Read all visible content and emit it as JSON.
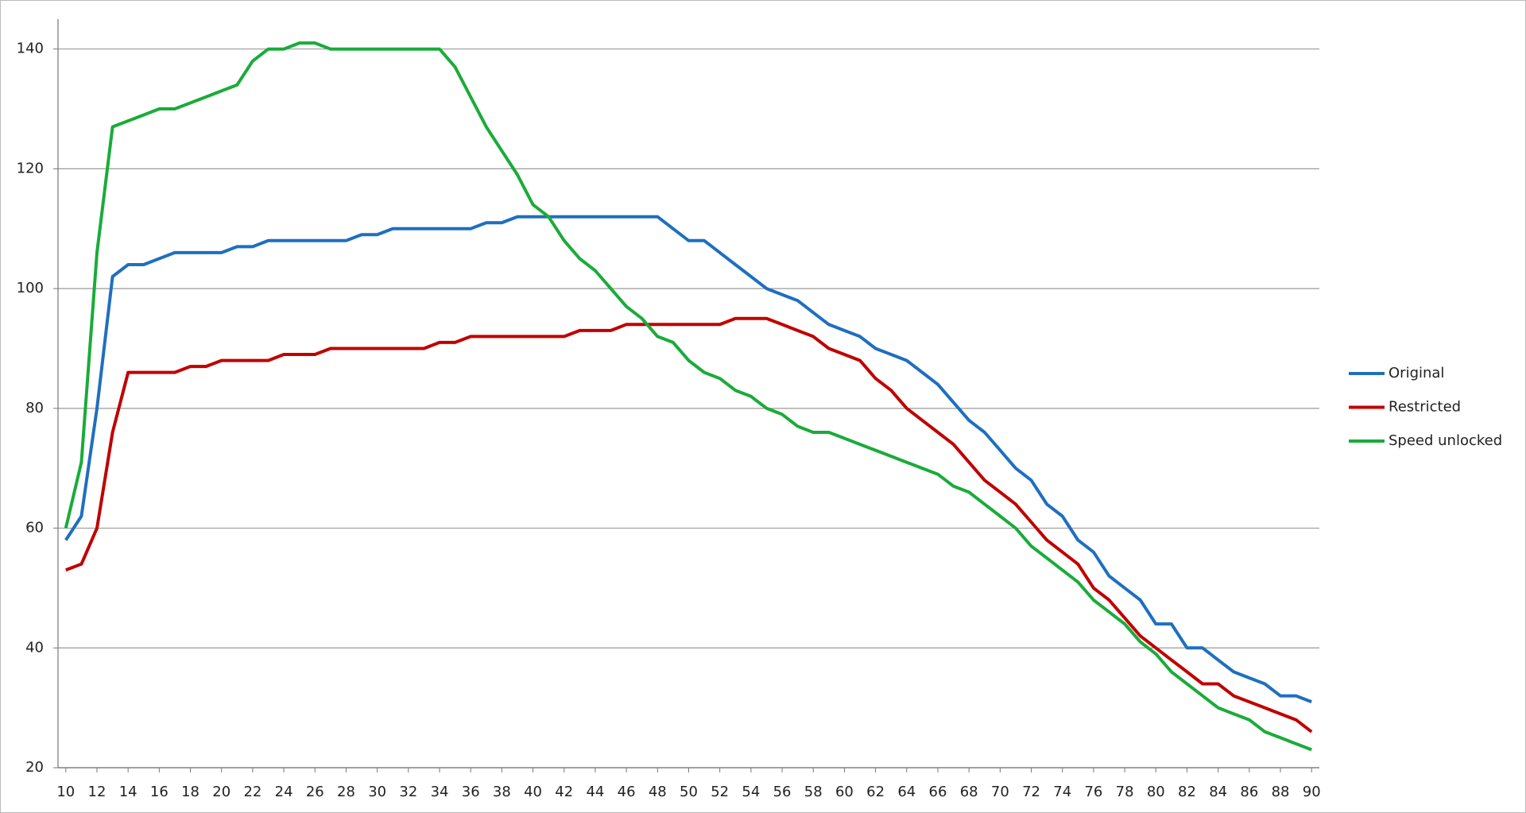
{
  "chart_data": {
    "type": "line",
    "x": [
      10,
      11,
      12,
      13,
      14,
      15,
      16,
      17,
      18,
      19,
      20,
      21,
      22,
      23,
      24,
      25,
      26,
      27,
      28,
      29,
      30,
      31,
      32,
      33,
      34,
      35,
      36,
      37,
      38,
      39,
      40,
      41,
      42,
      43,
      44,
      45,
      46,
      47,
      48,
      49,
      50,
      51,
      52,
      53,
      54,
      55,
      56,
      57,
      58,
      59,
      60,
      61,
      62,
      63,
      64,
      65,
      66,
      67,
      68,
      69,
      70,
      71,
      72,
      73,
      74,
      75,
      76,
      77,
      78,
      79,
      80,
      81,
      82,
      83,
      84,
      85,
      86,
      87,
      88,
      89,
      90
    ],
    "series": [
      {
        "name": "Original",
        "color": "#1f6fbf",
        "values": [
          58,
          62,
          80,
          102,
          104,
          104,
          105,
          106,
          106,
          106,
          106,
          107,
          107,
          108,
          108,
          108,
          108,
          108,
          108,
          109,
          109,
          110,
          110,
          110,
          110,
          110,
          110,
          111,
          111,
          112,
          112,
          112,
          112,
          112,
          112,
          112,
          112,
          112,
          112,
          110,
          108,
          108,
          106,
          104,
          102,
          100,
          99,
          98,
          96,
          94,
          93,
          92,
          90,
          89,
          88,
          86,
          84,
          81,
          78,
          76,
          73,
          70,
          68,
          64,
          62,
          58,
          56,
          52,
          50,
          48,
          44,
          44,
          40,
          40,
          38,
          36,
          35,
          34,
          32,
          32,
          31
        ]
      },
      {
        "name": "Restricted",
        "color": "#c00000",
        "values": [
          53,
          54,
          60,
          76,
          86,
          86,
          86,
          86,
          87,
          87,
          88,
          88,
          88,
          88,
          89,
          89,
          89,
          90,
          90,
          90,
          90,
          90,
          90,
          90,
          91,
          91,
          92,
          92,
          92,
          92,
          92,
          92,
          92,
          93,
          93,
          93,
          94,
          94,
          94,
          94,
          94,
          94,
          94,
          95,
          95,
          95,
          94,
          93,
          92,
          90,
          89,
          88,
          85,
          83,
          80,
          78,
          76,
          74,
          71,
          68,
          66,
          64,
          61,
          58,
          56,
          54,
          50,
          48,
          45,
          42,
          40,
          38,
          36,
          34,
          34,
          32,
          31,
          30,
          29,
          28,
          26
        ]
      },
      {
        "name": "Speed unlocked",
        "color": "#1aab3a",
        "values": [
          60,
          71,
          106,
          127,
          128,
          129,
          130,
          130,
          131,
          132,
          133,
          134,
          138,
          140,
          140,
          141,
          141,
          140,
          140,
          140,
          140,
          140,
          140,
          140,
          140,
          137,
          132,
          127,
          123,
          119,
          114,
          112,
          108,
          105,
          103,
          100,
          97,
          95,
          92,
          91,
          88,
          86,
          85,
          83,
          82,
          80,
          79,
          77,
          76,
          76,
          75,
          74,
          73,
          72,
          71,
          70,
          69,
          67,
          66,
          64,
          62,
          60,
          57,
          55,
          53,
          51,
          48,
          46,
          44,
          41,
          39,
          36,
          34,
          32,
          30,
          29,
          28,
          26,
          25,
          24,
          23
        ]
      }
    ],
    "xlim": [
      9.5,
      90.5
    ],
    "xticks": [
      10,
      12,
      14,
      16,
      18,
      20,
      22,
      24,
      26,
      28,
      30,
      32,
      34,
      36,
      38,
      40,
      42,
      44,
      46,
      48,
      50,
      52,
      54,
      56,
      58,
      60,
      62,
      64,
      66,
      68,
      70,
      72,
      74,
      76,
      78,
      80,
      82,
      84,
      86,
      88,
      90
    ],
    "ylim": [
      20,
      145
    ],
    "yticks": [
      20,
      40,
      60,
      80,
      100,
      120,
      140
    ],
    "grid": true,
    "legend": "right"
  }
}
